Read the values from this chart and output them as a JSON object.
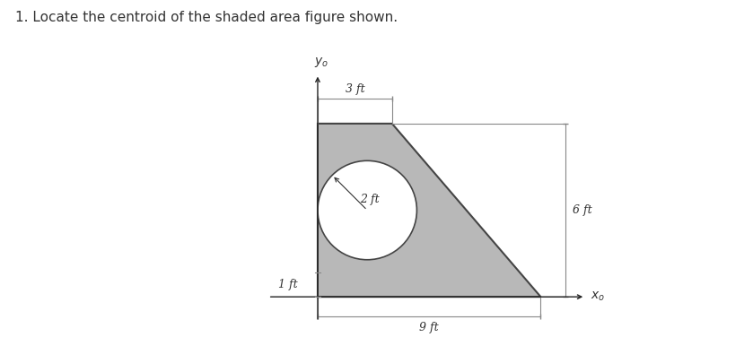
{
  "title": "1. Locate the centroid of the shaded area figure shown.",
  "title_fontsize": 11,
  "title_color": "#333333",
  "background_color": "#ffffff",
  "shape_color": "#b8b8b8",
  "shape_edge_color": "#444444",
  "axis_color": "#222222",
  "dim_line_color": "#888888",
  "text_color": "#333333",
  "figsize": [
    8.39,
    4.05
  ],
  "dpi": 100,
  "label_3ft": "3 ft",
  "label_9ft": "9 ft",
  "label_6ft": "6 ft",
  "label_1ft": "1 ft",
  "label_2ft": "2 ft",
  "label_yo": "$y_o$",
  "label_xo": "$x_o$"
}
